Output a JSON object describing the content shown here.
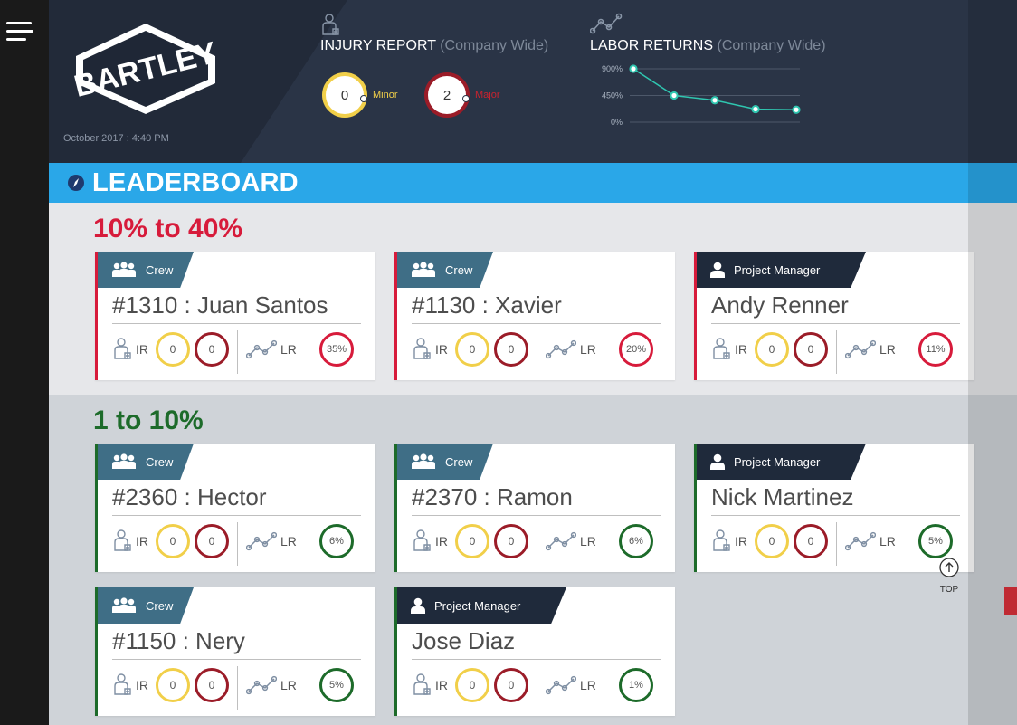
{
  "header": {
    "brand": "BARTLEY",
    "datetime": "October 2017 : 4:40 PM",
    "injury": {
      "title": "INJURY REPORT",
      "subtitle": "(Company Wide)",
      "minor": {
        "value": "0",
        "label": "Minor"
      },
      "major": {
        "value": "2",
        "label": "Major"
      }
    },
    "labor": {
      "title": "LABOR RETURNS",
      "subtitle": "(Company Wide)",
      "chart_data": {
        "type": "line",
        "x": [
          1,
          2,
          3,
          4,
          5
        ],
        "values": [
          900,
          450,
          370,
          220,
          210
        ],
        "ylim": [
          0,
          900
        ],
        "ytick_labels": [
          "900%",
          "450%",
          "0%"
        ],
        "grid": true
      }
    }
  },
  "colors": {
    "accent": "#2aa7e8",
    "red": "#d71b3b",
    "green": "#1d6b2a",
    "minor": "#f1cf49",
    "major": "#9b1c28"
  },
  "leaderboard": {
    "title": "LEADERBOARD",
    "ir_label": "IR",
    "lr_label": "LR",
    "band1": {
      "title": "10% to 40%",
      "cards": [
        {
          "role": "Crew",
          "name": "#1310 : Juan Santos",
          "minor": "0",
          "major": "0",
          "lr": "35%"
        },
        {
          "role": "Crew",
          "name": "#1130 : Xavier",
          "minor": "0",
          "major": "0",
          "lr": "20%"
        },
        {
          "role": "Project Manager",
          "name": "Andy Renner",
          "minor": "0",
          "major": "0",
          "lr": "11%"
        }
      ]
    },
    "band2": {
      "title": "1 to 10%",
      "cards": [
        {
          "role": "Crew",
          "name": "#2360 : Hector",
          "minor": "0",
          "major": "0",
          "lr": "6%"
        },
        {
          "role": "Crew",
          "name": "#2370 : Ramon",
          "minor": "0",
          "major": "0",
          "lr": "6%"
        },
        {
          "role": "Project Manager",
          "name": "Nick Martinez",
          "minor": "0",
          "major": "0",
          "lr": "5%"
        },
        {
          "role": "Crew",
          "name": "#1150 : Nery",
          "minor": "0",
          "major": "0",
          "lr": "5%"
        },
        {
          "role": "Project Manager",
          "name": "Jose Diaz",
          "minor": "0",
          "major": "0",
          "lr": "1%"
        }
      ]
    }
  },
  "top_label": "TOP"
}
